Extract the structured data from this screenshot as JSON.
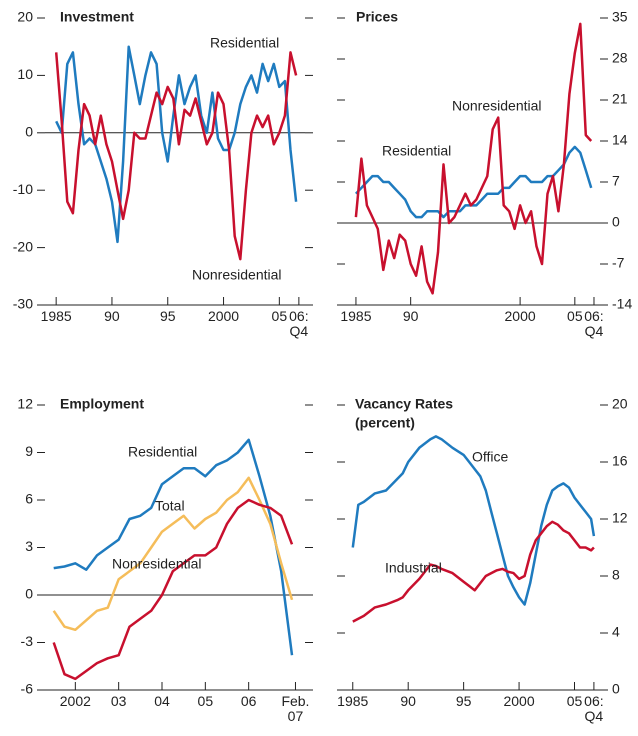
{
  "chart_data": [
    {
      "type": "line",
      "title": "Investment",
      "x": [
        1985,
        1985.5,
        1986,
        1986.5,
        1987,
        1987.5,
        1988,
        1988.5,
        1989,
        1989.5,
        1990,
        1990.5,
        1991,
        1991.5,
        1992,
        1992.5,
        1993,
        1993.5,
        1994,
        1994.5,
        1995,
        1995.5,
        1996,
        1996.5,
        1997,
        1997.5,
        1998,
        1998.5,
        1999,
        1999.5,
        2000,
        2000.5,
        2001,
        2001.5,
        2002,
        2002.5,
        2003,
        2003.5,
        2004,
        2004.5,
        2005,
        2005.5,
        2006,
        2006.5
      ],
      "series": [
        {
          "name": "Residential",
          "color": "#1f7bbf",
          "values": [
            2,
            0,
            12,
            14,
            5,
            -2,
            -1,
            -2,
            -5,
            -8,
            -12,
            -19,
            -5,
            15,
            10,
            5,
            10,
            14,
            12,
            0,
            -5,
            3,
            10,
            5,
            8,
            10,
            3,
            0,
            7,
            -1,
            -3,
            -3,
            0,
            5,
            8,
            10,
            7,
            12,
            9,
            12,
            8,
            9,
            -3,
            -12
          ]
        },
        {
          "name": "Nonresidential",
          "color": "#c8102e",
          "values": [
            14,
            2,
            -12,
            -14,
            -3,
            5,
            3,
            -2,
            3,
            -2,
            -5,
            -10,
            -15,
            -10,
            0,
            -1,
            -1,
            3,
            7,
            5,
            8,
            6,
            -2,
            4,
            3,
            6,
            2,
            -2,
            0,
            7,
            5,
            -3,
            -18,
            -22,
            -10,
            0,
            3,
            1,
            3,
            -2,
            0,
            3,
            14,
            10
          ]
        }
      ],
      "xlim": [
        1984,
        2007.3
      ],
      "xticks": [
        1985,
        {
          "value": 1990,
          "label": "90"
        },
        {
          "value": 1995,
          "label": "95"
        },
        2000,
        {
          "value": 2005,
          "label": "05"
        },
        {
          "value": 2006.75,
          "label": "06: Q4"
        }
      ],
      "ylim": [
        -30,
        20
      ],
      "yticks": [
        -30,
        -20,
        -10,
        0,
        10,
        20
      ]
    },
    {
      "type": "line",
      "title": "Prices",
      "x": [
        1985,
        1985.5,
        1986,
        1986.5,
        1987,
        1987.5,
        1988,
        1988.5,
        1989,
        1989.5,
        1990,
        1990.5,
        1991,
        1991.5,
        1992,
        1992.5,
        1993,
        1993.5,
        1994,
        1994.5,
        1995,
        1995.5,
        1996,
        1996.5,
        1997,
        1997.5,
        1998,
        1998.5,
        1999,
        1999.5,
        2000,
        2000.5,
        2001,
        2001.5,
        2002,
        2002.5,
        2003,
        2003.5,
        2004,
        2004.5,
        2005,
        2005.5,
        2006,
        2006.5
      ],
      "series": [
        {
          "name": "Residential",
          "color": "#1f7bbf",
          "values": [
            5,
            6,
            7,
            8,
            8,
            7,
            7,
            6,
            5,
            4,
            2,
            1,
            1,
            2,
            2,
            2,
            1,
            2,
            2,
            2,
            3,
            3,
            3,
            4,
            5,
            5,
            5,
            6,
            6,
            7,
            8,
            8,
            7,
            7,
            7,
            8,
            8,
            9,
            10,
            12,
            13,
            12,
            9,
            6
          ]
        },
        {
          "name": "Nonresidential",
          "color": "#c8102e",
          "values": [
            1,
            11,
            3,
            1,
            -1,
            -8,
            -3,
            -6,
            -2,
            -3,
            -7,
            -9,
            -4,
            -10,
            -12,
            -5,
            10,
            0,
            1,
            3,
            5,
            3,
            4,
            6,
            8,
            16,
            18,
            3,
            2,
            -1,
            3,
            0,
            2,
            -4,
            -7,
            5,
            8,
            2,
            10,
            22,
            29,
            34,
            15,
            14
          ]
        }
      ],
      "xlim": [
        1984,
        2007.3
      ],
      "xticks": [
        1985,
        {
          "value": 1990,
          "label": "90"
        },
        2000,
        {
          "value": 2005,
          "label": "05"
        },
        {
          "value": 2006.75,
          "label": "06: Q4"
        }
      ],
      "ylim": [
        -14,
        35
      ],
      "yticks": [
        -14,
        -7,
        0,
        7,
        14,
        21,
        28,
        35
      ]
    },
    {
      "type": "line",
      "title": "Employment",
      "x": [
        2001.5,
        2001.75,
        2002,
        2002.25,
        2002.5,
        2002.75,
        2003,
        2003.25,
        2003.5,
        2003.75,
        2004,
        2004.25,
        2004.5,
        2004.75,
        2005,
        2005.25,
        2005.5,
        2005.75,
        2006,
        2006.25,
        2006.5,
        2006.75,
        2007
      ],
      "series": [
        {
          "name": "Residential",
          "color": "#1f7bbf",
          "values": [
            1.7,
            1.8,
            2,
            1.6,
            2.5,
            3,
            3.5,
            4.8,
            5,
            5.5,
            7,
            7.5,
            8,
            8,
            7.5,
            8.2,
            8.5,
            9,
            9.8,
            7.5,
            5,
            1.5,
            -3.8
          ]
        },
        {
          "name": "Total",
          "color": "#f5bd5a",
          "values": [
            -1,
            -2,
            -2.2,
            -1.6,
            -1,
            -0.8,
            1,
            1.5,
            2,
            3,
            4,
            4.5,
            5,
            4.2,
            4.8,
            5.2,
            6,
            6.5,
            7.4,
            6,
            4.5,
            2,
            -0.3
          ]
        },
        {
          "name": "Nonresidential",
          "color": "#c8102e",
          "values": [
            -3,
            -5,
            -5.3,
            -4.8,
            -4.3,
            -4,
            -3.8,
            -2,
            -1.5,
            -1,
            0,
            1.5,
            2,
            2.5,
            2.5,
            3,
            4.5,
            5.5,
            6,
            5.7,
            5.5,
            5,
            3.2
          ]
        }
      ],
      "xlim": [
        2001.3,
        2007.3
      ],
      "xticks": [
        2002,
        {
          "value": 2003,
          "label": "03"
        },
        {
          "value": 2004,
          "label": "04"
        },
        {
          "value": 2005,
          "label": "05"
        },
        {
          "value": 2006,
          "label": "06"
        },
        {
          "value": 2007.08,
          "label": "Feb. 07"
        }
      ],
      "ylim": [
        -6,
        12
      ],
      "yticks": [
        -6,
        -3,
        0,
        3,
        6,
        9,
        12
      ]
    },
    {
      "type": "line",
      "title": "Vacancy Rates",
      "subtitle": "(percent)",
      "x": [
        1985,
        1985.5,
        1986,
        1987,
        1988,
        1989,
        1989.5,
        1990,
        1991,
        1992,
        1992.5,
        1993,
        1994,
        1995,
        1995.5,
        1996,
        1996.5,
        1997,
        1997.5,
        1998,
        1998.5,
        1999,
        1999.5,
        2000,
        2000.5,
        2001,
        2001.5,
        2002,
        2002.5,
        2003,
        2003.5,
        2004,
        2004.5,
        2005,
        2005.5,
        2006,
        2006.5,
        2006.75
      ],
      "series": [
        {
          "name": "Office",
          "color": "#1f7bbf",
          "values": [
            10,
            13,
            13.2,
            13.8,
            14,
            14.8,
            15.2,
            16,
            17,
            17.6,
            17.8,
            17.6,
            17,
            16.5,
            16,
            15.5,
            15,
            14,
            12.5,
            11,
            9.5,
            8,
            7.2,
            6.5,
            6,
            7.5,
            9.5,
            11.5,
            13,
            14,
            14.3,
            14.5,
            14.2,
            13.5,
            13,
            12.5,
            12,
            10.8
          ]
        },
        {
          "name": "Industrial",
          "color": "#c8102e",
          "values": [
            4.8,
            5,
            5.2,
            5.8,
            6,
            6.3,
            6.5,
            7,
            7.8,
            8.8,
            8.7,
            8.5,
            8.2,
            7.6,
            7.3,
            7,
            7.5,
            8,
            8.2,
            8.4,
            8.5,
            8.3,
            8.2,
            7.8,
            8,
            9.5,
            10.5,
            11,
            11.5,
            11.8,
            11.6,
            11.2,
            11,
            10.5,
            10,
            10,
            9.8,
            10
          ]
        }
      ],
      "xlim": [
        1984.3,
        2007.3
      ],
      "xticks": [
        1985,
        {
          "value": 1990,
          "label": "90"
        },
        {
          "value": 1995,
          "label": "95"
        },
        2000,
        {
          "value": 2005,
          "label": "05"
        },
        {
          "value": 2006.75,
          "label": "06: Q4"
        }
      ],
      "ylim": [
        0,
        20
      ],
      "yticks": [
        0,
        4,
        8,
        12,
        16,
        20
      ]
    }
  ]
}
